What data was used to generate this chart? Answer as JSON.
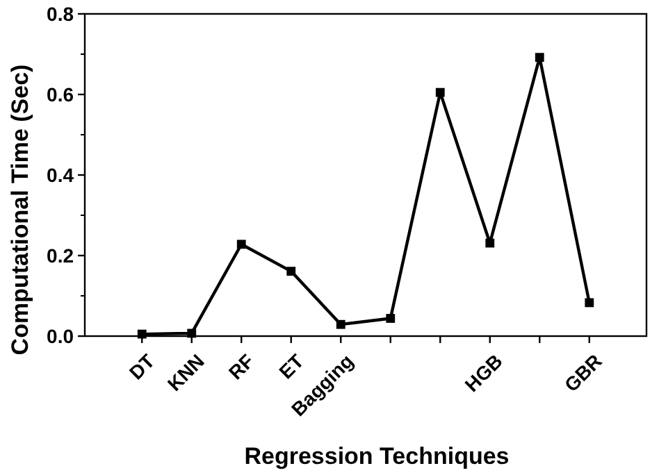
{
  "chart_data": {
    "type": "line",
    "xlabel": "Regression Techniques",
    "ylabel": "Computational Time (Sec)",
    "categories": [
      "DT",
      "KNN",
      "RF",
      "ET",
      "Bagging",
      null,
      null,
      "HGB",
      null,
      "GBR"
    ],
    "series": [
      {
        "color": "#000000",
        "values": [
          0.005,
          0.007,
          0.228,
          0.161,
          0.029,
          0.044,
          0.605,
          0.231,
          0.692,
          0.083
        ]
      }
    ],
    "ylim": [
      0,
      0.8
    ],
    "yticks": [
      {
        "value": 0,
        "label": "0.0"
      },
      {
        "value": 0.2,
        "label": "0.2"
      },
      {
        "value": 0.4,
        "label": "0.4"
      },
      {
        "value": 0.6,
        "label": "0.6"
      },
      {
        "value": 0.8,
        "label": "0.8"
      }
    ],
    "grid": false,
    "marker": "square",
    "line_style": "solid"
  }
}
